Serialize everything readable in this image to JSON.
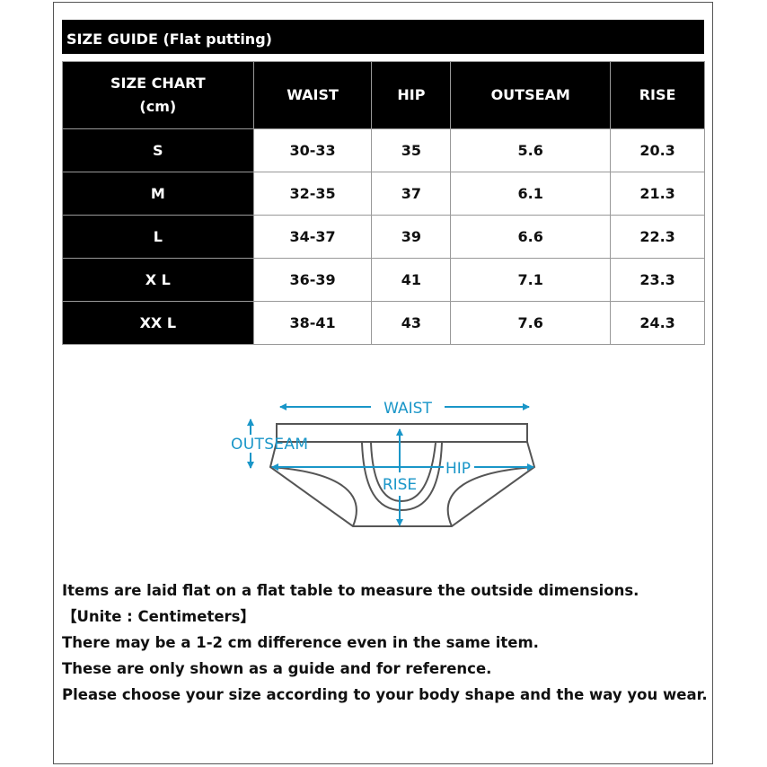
{
  "title": "SIZE GUIDE (Flat putting)",
  "table": {
    "headers": [
      "SIZE CHART",
      "(cm)",
      "WAIST",
      "HIP",
      "OUTSEAM",
      "RISE"
    ],
    "rows": [
      [
        "S",
        "30-33",
        "35",
        "5.6",
        "20.3"
      ],
      [
        "M",
        "32-35",
        "37",
        "6.1",
        "21.3"
      ],
      [
        "L",
        "34-37",
        "39",
        "6.6",
        "22.3"
      ],
      [
        "X L",
        "36-39",
        "41",
        "7.1",
        "23.3"
      ],
      [
        "XX L",
        "38-41",
        "43",
        "7.6",
        "24.3"
      ]
    ]
  },
  "diagram": {
    "labels": {
      "waist": "WAIST",
      "outseam": "OUTSEAM",
      "hip": "HIP",
      "rise": "RISE"
    },
    "accent_color": "#1a96c8",
    "line_color": "#555555"
  },
  "notes": [
    "Items are laid flat on a flat table to measure the outside dimensions.",
    "【Unite : Centimeters】",
    "There may be a 1-2 cm difference even in the same item.",
    "These are only shown as a guide and for reference.",
    "Please choose your size according to your body shape and the way you wear."
  ]
}
